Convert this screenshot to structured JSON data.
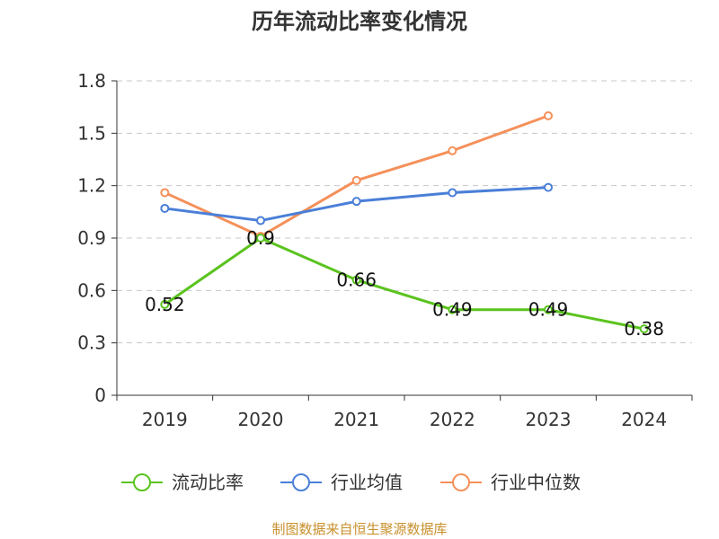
{
  "chart_data": {
    "type": "line",
    "title": "历年流动比率变化情况",
    "categories": [
      "2019",
      "2020",
      "2021",
      "2022",
      "2023",
      "2024"
    ],
    "y_ticks": [
      "0",
      "0.3",
      "0.6",
      "0.9",
      "1.2",
      "1.5",
      "1.8"
    ],
    "ylim": [
      0,
      1.8
    ],
    "grid": true,
    "legend_position": "bottom",
    "series": [
      {
        "name": "流动比率",
        "color": "#5ac31e",
        "values": [
          0.52,
          0.9,
          0.66,
          0.49,
          0.49,
          0.38
        ],
        "labels": [
          "0.52",
          "0.9",
          "0.66",
          "0.49",
          "0.49",
          "0.38"
        ]
      },
      {
        "name": "行业均值",
        "color": "#4a7fd8",
        "values": [
          1.07,
          1.0,
          1.11,
          1.16,
          1.19,
          null
        ]
      },
      {
        "name": "行业中位数",
        "color": "#f5905a",
        "values": [
          1.16,
          0.91,
          1.23,
          1.4,
          1.6,
          null
        ]
      }
    ],
    "source": "制图数据来自恒生聚源数据库"
  }
}
